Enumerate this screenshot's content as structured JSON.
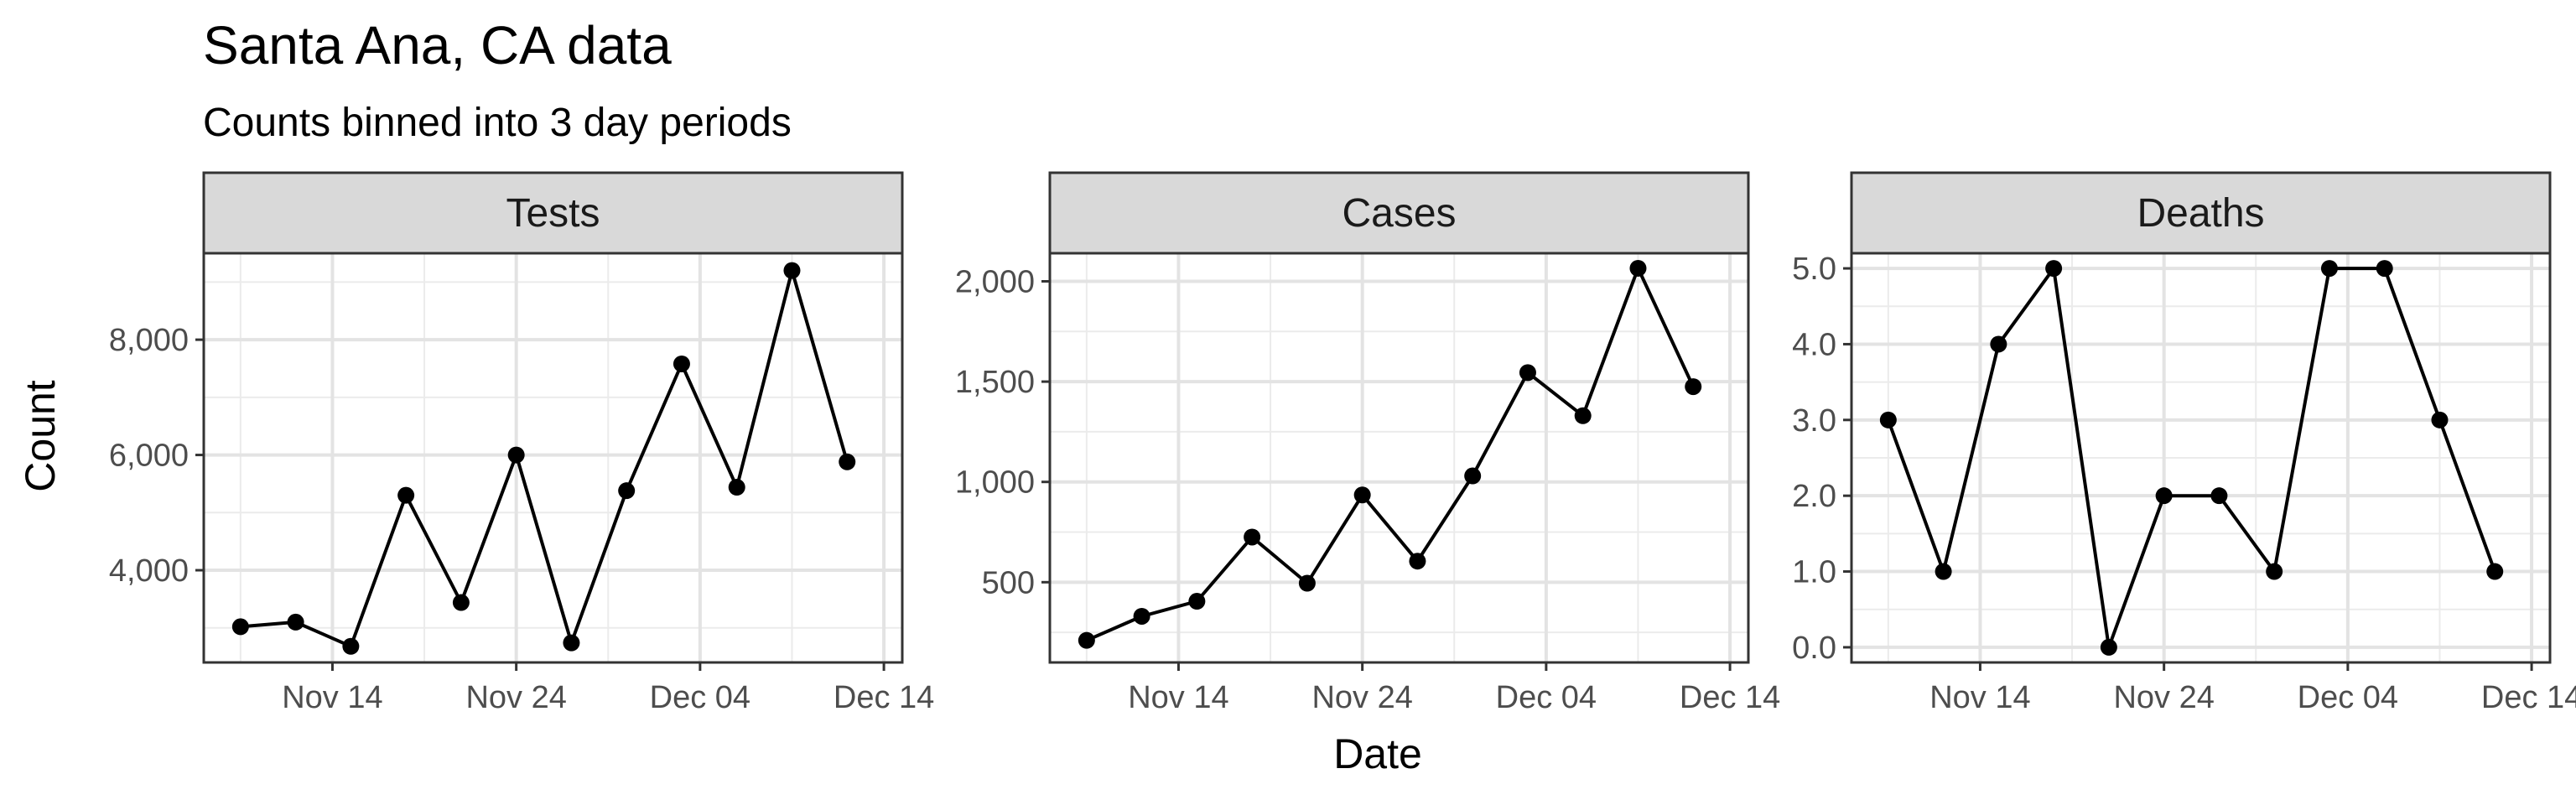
{
  "chart_data": {
    "type": "line",
    "title": "Santa Ana, CA data",
    "subtitle": "Counts binned into 3 day periods",
    "xlabel": "Date",
    "ylabel": "Count",
    "x_day_range": [
      7,
      45
    ],
    "x_ticks": [
      {
        "label": "Nov 14",
        "day": 14
      },
      {
        "label": "Nov 24",
        "day": 24
      },
      {
        "label": "Dec 04",
        "day": 34
      },
      {
        "label": "Dec 14",
        "day": 44
      }
    ],
    "x_dates": [
      "Nov 09",
      "Nov 12",
      "Nov 15",
      "Nov 18",
      "Nov 21",
      "Nov 24",
      "Nov 27",
      "Nov 30",
      "Dec 03",
      "Dec 06",
      "Dec 09",
      "Dec 12"
    ],
    "x_days": [
      9,
      12,
      15,
      18,
      21,
      24,
      27,
      30,
      33,
      36,
      39,
      42
    ],
    "panels": [
      {
        "name": "Tests",
        "ylim": [
          2400,
          9500
        ],
        "y_ticks": [
          4000,
          6000,
          8000
        ],
        "y_tick_labels": [
          "4,000",
          "6,000",
          "8,000"
        ],
        "y_minor": [
          3000,
          5000,
          7000,
          9000
        ],
        "values": [
          3020,
          3100,
          2680,
          5300,
          3440,
          6000,
          2740,
          5380,
          7580,
          5440,
          9200,
          5880
        ]
      },
      {
        "name": "Cases",
        "ylim": [
          100,
          2140
        ],
        "y_ticks": [
          500,
          1000,
          1500,
          2000
        ],
        "y_tick_labels": [
          "500",
          "1,000",
          "1,500",
          "2,000"
        ],
        "y_minor": [
          250,
          750,
          1250,
          1750
        ],
        "values": [
          210,
          330,
          405,
          725,
          495,
          935,
          605,
          1030,
          1545,
          1330,
          2065,
          1475
        ]
      },
      {
        "name": "Deaths",
        "ylim": [
          -0.2,
          5.2
        ],
        "y_ticks": [
          0,
          1,
          2,
          3,
          4,
          5
        ],
        "y_tick_labels": [
          "0.0",
          "1.0",
          "2.0",
          "3.0",
          "4.0",
          "5.0"
        ],
        "y_minor": [
          0.5,
          1.5,
          2.5,
          3.5,
          4.5
        ],
        "values": [
          3,
          1,
          4,
          5,
          0,
          2,
          2,
          1,
          5,
          5,
          3,
          1
        ]
      }
    ]
  }
}
